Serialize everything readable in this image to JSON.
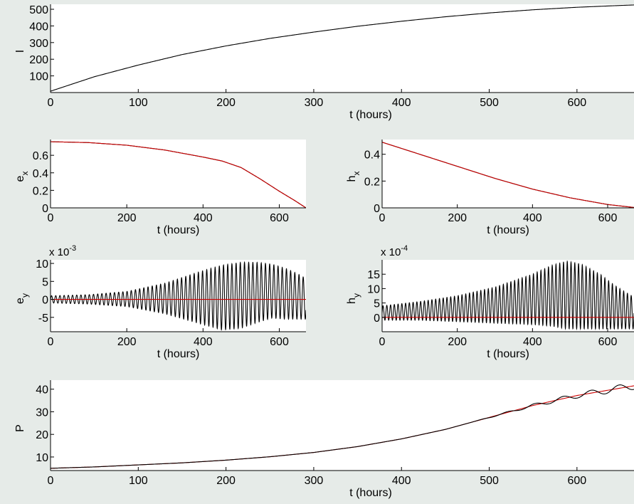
{
  "figure": {
    "background": "#e6ebe8",
    "axes_background": "#ffffff",
    "colors": {
      "sim": "#000000",
      "model": "#cc0000"
    }
  },
  "chart_data": [
    {
      "id": "I",
      "type": "line",
      "ylabel": "I",
      "xlabel": "t (hours)",
      "xlim": [
        0,
        665
      ],
      "ylim": [
        0,
        530
      ],
      "xticks": [
        0,
        100,
        200,
        300,
        400,
        500,
        600
      ],
      "yticks": [
        100,
        200,
        300,
        400,
        500
      ],
      "series": [
        {
          "color": "#000000",
          "x": [
            0,
            50,
            100,
            150,
            200,
            250,
            300,
            350,
            400,
            450,
            500,
            550,
            600,
            650,
            665
          ],
          "y": [
            8,
            95,
            165,
            228,
            280,
            325,
            363,
            398,
            428,
            455,
            478,
            497,
            512,
            523,
            526
          ]
        }
      ]
    },
    {
      "id": "ex",
      "type": "line",
      "ylabel": "e_x",
      "xlabel": "t (hours)",
      "xlim": [
        0,
        670
      ],
      "ylim": [
        0,
        0.78
      ],
      "xticks": [
        0,
        200,
        400,
        600
      ],
      "yticks": [
        0,
        0.2,
        0.4,
        0.6
      ],
      "series": [
        {
          "color": "#000000",
          "x": [
            0,
            100,
            200,
            300,
            400,
            450,
            500,
            550,
            600,
            640,
            670
          ],
          "y": [
            0.755,
            0.745,
            0.715,
            0.66,
            0.58,
            0.535,
            0.46,
            0.33,
            0.19,
            0.085,
            0.0
          ]
        },
        {
          "color": "#cc0000",
          "x": [
            0,
            100,
            200,
            300,
            400,
            450,
            500,
            550,
            600,
            640,
            670
          ],
          "y": [
            0.755,
            0.745,
            0.715,
            0.66,
            0.58,
            0.535,
            0.46,
            0.33,
            0.19,
            0.085,
            0.0
          ]
        }
      ]
    },
    {
      "id": "hx",
      "type": "line",
      "ylabel": "h_x",
      "xlabel": "t (hours)",
      "xlim": [
        0,
        670
      ],
      "ylim": [
        0,
        0.51
      ],
      "xticks": [
        0,
        200,
        400,
        600
      ],
      "yticks": [
        0,
        0.2,
        0.4
      ],
      "series": [
        {
          "color": "#000000",
          "x": [
            0,
            100,
            200,
            300,
            400,
            500,
            600,
            670
          ],
          "y": [
            0.49,
            0.4,
            0.31,
            0.22,
            0.14,
            0.075,
            0.025,
            0.003
          ]
        },
        {
          "color": "#cc0000",
          "x": [
            0,
            100,
            200,
            300,
            400,
            500,
            600,
            670
          ],
          "y": [
            0.49,
            0.4,
            0.31,
            0.22,
            0.14,
            0.075,
            0.025,
            0.003
          ]
        }
      ]
    },
    {
      "id": "ey",
      "type": "line",
      "ylabel": "e_y",
      "xlabel": "t (hours)",
      "scale_label": "x 10^-3",
      "xlim": [
        0,
        670
      ],
      "ylim": [
        -9,
        11
      ],
      "xticks": [
        0,
        200,
        400,
        600
      ],
      "yticks": [
        -5,
        0,
        5,
        10
      ],
      "series": [
        {
          "color": "#000000",
          "oscillation": {
            "period_hours": 11,
            "envelope_t": [
              0,
              100,
              200,
              300,
              400,
              450,
              500,
              540,
              580,
              620,
              660,
              670
            ],
            "envelope_upper": [
              1.0,
              1.3,
              2.2,
              4.5,
              8.0,
              9.5,
              10.3,
              10.3,
              9.8,
              8.5,
              6.5,
              5.5
            ],
            "envelope_lower": [
              -1.0,
              -1.3,
              -2.0,
              -4.0,
              -7.0,
              -8.5,
              -8.0,
              -6.5,
              -5.2,
              -5.5,
              -5.5,
              -5.5
            ]
          }
        },
        {
          "color": "#cc0000",
          "x": [
            0,
            670
          ],
          "y": [
            0,
            0
          ]
        }
      ]
    },
    {
      "id": "hy",
      "type": "line",
      "ylabel": "h_y",
      "xlabel": "t (hours)",
      "scale_label": "x 10^-4",
      "xlim": [
        0,
        670
      ],
      "ylim": [
        -5,
        20
      ],
      "xticks": [
        0,
        200,
        400,
        600
      ],
      "yticks": [
        0,
        5,
        10,
        15
      ],
      "series": [
        {
          "color": "#000000",
          "oscillation": {
            "period_hours": 10,
            "envelope_t": [
              0,
              100,
              200,
              300,
              400,
              450,
              490,
              530,
              580,
              620,
              670
            ],
            "envelope_upper": [
              4.0,
              5.5,
              7.5,
              10.5,
              15.0,
              18.0,
              19.5,
              18.5,
              15.0,
              11.0,
              7.0
            ],
            "envelope_lower": [
              -1.0,
              -1.0,
              -1.5,
              -2.0,
              -2.5,
              -3.0,
              -4.0,
              -4.0,
              -4.0,
              -4.0,
              -4.0
            ]
          }
        },
        {
          "color": "#cc0000",
          "x": [
            0,
            670
          ],
          "y": [
            0,
            0
          ]
        }
      ]
    },
    {
      "id": "P",
      "type": "line",
      "ylabel": "P",
      "xlabel": "t (hours)",
      "xlim": [
        0,
        665
      ],
      "ylim": [
        4,
        44
      ],
      "xticks": [
        0,
        100,
        200,
        300,
        400,
        500,
        600
      ],
      "yticks": [
        10,
        20,
        30,
        40
      ],
      "series": [
        {
          "color": "#cc0000",
          "x": [
            0,
            50,
            100,
            150,
            200,
            250,
            300,
            350,
            400,
            450,
            500,
            550,
            600,
            650,
            665
          ],
          "y": [
            5,
            5.6,
            6.5,
            7.4,
            8.6,
            10.1,
            12.0,
            14.6,
            18.0,
            22.2,
            27.5,
            32.8,
            37.2,
            40.5,
            41.5
          ]
        },
        {
          "color": "#000000",
          "x": [
            0,
            50,
            100,
            150,
            200,
            250,
            300,
            350,
            400,
            450,
            500,
            550,
            600,
            650,
            665
          ],
          "y": [
            5,
            5.6,
            6.5,
            7.4,
            8.6,
            10.1,
            12.0,
            14.6,
            18.0,
            22.2,
            27.5,
            32.8,
            37.2,
            40.5,
            41.5
          ],
          "oscillation": {
            "start_hours": 480,
            "period_hours": 32,
            "amplitude": [
              0,
              0.4,
              0.9,
              1.3,
              1.6
            ]
          }
        }
      ]
    }
  ]
}
